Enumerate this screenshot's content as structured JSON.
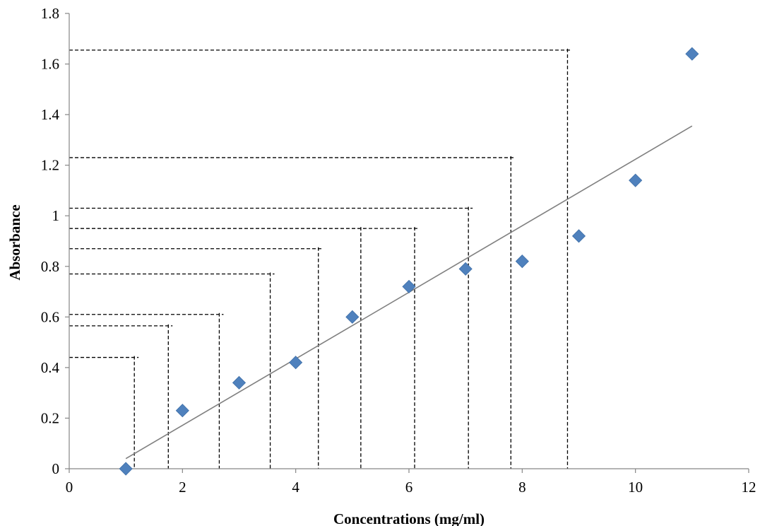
{
  "chart_data": {
    "type": "scatter",
    "title": "",
    "xlabel": "Concentrations (mg/ml)",
    "ylabel": "Absorbance",
    "xlim": [
      0,
      12
    ],
    "ylim": [
      0,
      1.8
    ],
    "x_ticks": [
      "0",
      "2",
      "4",
      "6",
      "8",
      "10",
      "12"
    ],
    "y_ticks": [
      "0",
      "0.2",
      "0.4",
      "0.6",
      "0.8",
      "1",
      "1.2",
      "1.4",
      "1.6",
      "1.8"
    ],
    "grid": false,
    "legend": "none",
    "marker": "diamond",
    "marker_color": "#4F81BD",
    "points": [
      {
        "x": 1,
        "y": 0.0
      },
      {
        "x": 2,
        "y": 0.23
      },
      {
        "x": 3,
        "y": 0.34
      },
      {
        "x": 4,
        "y": 0.42
      },
      {
        "x": 5,
        "y": 0.6
      },
      {
        "x": 6,
        "y": 0.72
      },
      {
        "x": 7,
        "y": 0.79
      },
      {
        "x": 8,
        "y": 0.82
      },
      {
        "x": 9,
        "y": 0.92
      },
      {
        "x": 10,
        "y": 1.14
      },
      {
        "x": 11,
        "y": 1.64
      }
    ],
    "trendline": {
      "x1": 1,
      "y1": 0.04,
      "x2": 11,
      "y2": 1.355,
      "color": "#808080"
    },
    "reference_lines": [
      {
        "x": 1.15,
        "y": 0.44
      },
      {
        "x": 1.75,
        "y": 0.565
      },
      {
        "x": 2.65,
        "y": 0.61
      },
      {
        "x": 3.55,
        "y": 0.77
      },
      {
        "x": 4.4,
        "y": 0.87
      },
      {
        "x": 5.15,
        "y": 0.95
      },
      {
        "x": 6.1,
        "y": 0.95
      },
      {
        "x": 7.05,
        "y": 1.03
      },
      {
        "x": 7.8,
        "y": 1.23
      },
      {
        "x": 8.8,
        "y": 1.655
      }
    ]
  }
}
